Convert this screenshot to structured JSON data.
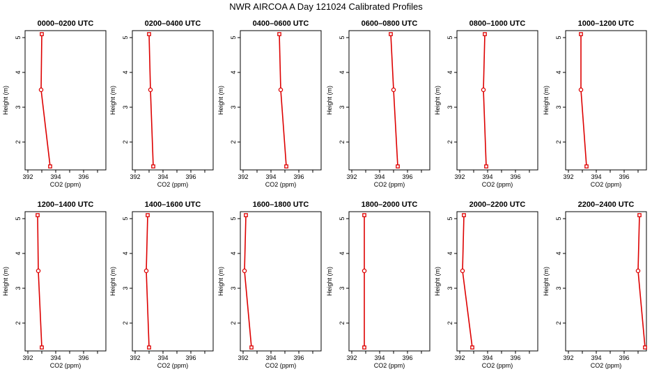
{
  "figure": {
    "title": "NWR AIRCOA A  Day 121024  Calibrated Profiles",
    "series_color": "#dd0000"
  },
  "chart_data": [
    {
      "type": "line",
      "title": "0000–0200 UTC",
      "xlabel": "CO2 (ppm)",
      "ylabel": "Height (m)",
      "xlim": [
        391.8,
        397.6
      ],
      "ylim": [
        1.2,
        5.2
      ],
      "xticks": [
        "392",
        "394",
        "396"
      ],
      "yticks": [
        "2",
        "3",
        "4",
        "5"
      ],
      "points": [
        {
          "x": 393.0,
          "y": 5.1
        },
        {
          "x": 392.95,
          "y": 3.5
        },
        {
          "x": 393.6,
          "y": 1.3
        }
      ]
    },
    {
      "type": "line",
      "title": "0200–0400 UTC",
      "xlabel": "CO2 (ppm)",
      "ylabel": "Height (m)",
      "xlim": [
        391.8,
        397.6
      ],
      "ylim": [
        1.2,
        5.2
      ],
      "xticks": [
        "392",
        "394",
        "396"
      ],
      "yticks": [
        "2",
        "3",
        "4",
        "5"
      ],
      "points": [
        {
          "x": 393.0,
          "y": 5.1
        },
        {
          "x": 393.1,
          "y": 3.5
        },
        {
          "x": 393.3,
          "y": 1.3
        }
      ]
    },
    {
      "type": "line",
      "title": "0400–0600 UTC",
      "xlabel": "CO2 (ppm)",
      "ylabel": "Height (m)",
      "xlim": [
        391.8,
        397.6
      ],
      "ylim": [
        1.2,
        5.2
      ],
      "xticks": [
        "392",
        "394",
        "396"
      ],
      "yticks": [
        "2",
        "3",
        "4",
        "5"
      ],
      "points": [
        {
          "x": 394.6,
          "y": 5.1
        },
        {
          "x": 394.7,
          "y": 3.5
        },
        {
          "x": 395.1,
          "y": 1.3
        }
      ]
    },
    {
      "type": "line",
      "title": "0600–0800 UTC",
      "xlabel": "CO2 (ppm)",
      "ylabel": "Height (m)",
      "xlim": [
        391.8,
        397.6
      ],
      "ylim": [
        1.2,
        5.2
      ],
      "xticks": [
        "392",
        "394",
        "396"
      ],
      "yticks": [
        "2",
        "3",
        "4",
        "5"
      ],
      "points": [
        {
          "x": 394.8,
          "y": 5.1
        },
        {
          "x": 395.0,
          "y": 3.5
        },
        {
          "x": 395.3,
          "y": 1.3
        }
      ]
    },
    {
      "type": "line",
      "title": "0800–1000 UTC",
      "xlabel": "CO2 (ppm)",
      "ylabel": "Height (m)",
      "xlim": [
        391.8,
        397.6
      ],
      "ylim": [
        1.2,
        5.2
      ],
      "xticks": [
        "392",
        "394",
        "396"
      ],
      "yticks": [
        "2",
        "3",
        "4",
        "5"
      ],
      "points": [
        {
          "x": 393.8,
          "y": 5.1
        },
        {
          "x": 393.7,
          "y": 3.5
        },
        {
          "x": 393.9,
          "y": 1.3
        }
      ]
    },
    {
      "type": "line",
      "title": "1000–1200 UTC",
      "xlabel": "CO2 (ppm)",
      "ylabel": "Height (m)",
      "xlim": [
        391.8,
        397.6
      ],
      "ylim": [
        1.2,
        5.2
      ],
      "xticks": [
        "392",
        "394",
        "396"
      ],
      "yticks": [
        "2",
        "3",
        "4",
        "5"
      ],
      "points": [
        {
          "x": 392.9,
          "y": 5.1
        },
        {
          "x": 392.9,
          "y": 3.5
        },
        {
          "x": 393.3,
          "y": 1.3
        }
      ]
    },
    {
      "type": "line",
      "title": "1200–1400 UTC",
      "xlabel": "CO2 (ppm)",
      "ylabel": "Height (m)",
      "xlim": [
        391.8,
        397.6
      ],
      "ylim": [
        1.2,
        5.2
      ],
      "xticks": [
        "392",
        "394",
        "396"
      ],
      "yticks": [
        "2",
        "3",
        "4",
        "5"
      ],
      "points": [
        {
          "x": 392.7,
          "y": 5.1
        },
        {
          "x": 392.75,
          "y": 3.5
        },
        {
          "x": 393.0,
          "y": 1.3
        }
      ]
    },
    {
      "type": "line",
      "title": "1400–1600 UTC",
      "xlabel": "CO2 (ppm)",
      "ylabel": "Height (m)",
      "xlim": [
        391.8,
        397.6
      ],
      "ylim": [
        1.2,
        5.2
      ],
      "xticks": [
        "392",
        "394",
        "396"
      ],
      "yticks": [
        "2",
        "3",
        "4",
        "5"
      ],
      "points": [
        {
          "x": 392.9,
          "y": 5.1
        },
        {
          "x": 392.8,
          "y": 3.5
        },
        {
          "x": 393.0,
          "y": 1.3
        }
      ]
    },
    {
      "type": "line",
      "title": "1600–1800 UTC",
      "xlabel": "CO2 (ppm)",
      "ylabel": "Height (m)",
      "xlim": [
        391.8,
        397.6
      ],
      "ylim": [
        1.2,
        5.2
      ],
      "xticks": [
        "392",
        "394",
        "396"
      ],
      "yticks": [
        "2",
        "3",
        "4",
        "5"
      ],
      "points": [
        {
          "x": 392.2,
          "y": 5.1
        },
        {
          "x": 392.1,
          "y": 3.5
        },
        {
          "x": 392.6,
          "y": 1.3
        }
      ]
    },
    {
      "type": "line",
      "title": "1800–2000 UTC",
      "xlabel": "CO2 (ppm)",
      "ylabel": "Height (m)",
      "xlim": [
        391.8,
        397.6
      ],
      "ylim": [
        1.2,
        5.2
      ],
      "xticks": [
        "392",
        "394",
        "396"
      ],
      "yticks": [
        "2",
        "3",
        "4",
        "5"
      ],
      "points": [
        {
          "x": 392.9,
          "y": 5.1
        },
        {
          "x": 392.9,
          "y": 3.5
        },
        {
          "x": 392.9,
          "y": 1.3
        }
      ]
    },
    {
      "type": "line",
      "title": "2000–2200 UTC",
      "xlabel": "CO2 (ppm)",
      "ylabel": "Height (m)",
      "xlim": [
        391.8,
        397.6
      ],
      "ylim": [
        1.2,
        5.2
      ],
      "xticks": [
        "392",
        "394",
        "396"
      ],
      "yticks": [
        "2",
        "3",
        "4",
        "5"
      ],
      "points": [
        {
          "x": 392.3,
          "y": 5.1
        },
        {
          "x": 392.2,
          "y": 3.5
        },
        {
          "x": 392.9,
          "y": 1.3
        }
      ]
    },
    {
      "type": "line",
      "title": "2200–2400 UTC",
      "xlabel": "CO2 (ppm)",
      "ylabel": "Height (m)",
      "xlim": [
        391.8,
        397.6
      ],
      "ylim": [
        1.2,
        5.2
      ],
      "xticks": [
        "392",
        "394",
        "396"
      ],
      "yticks": [
        "2",
        "3",
        "4",
        "5"
      ],
      "points": [
        {
          "x": 397.1,
          "y": 5.1
        },
        {
          "x": 397.0,
          "y": 3.5
        },
        {
          "x": 397.5,
          "y": 1.3
        }
      ]
    }
  ]
}
